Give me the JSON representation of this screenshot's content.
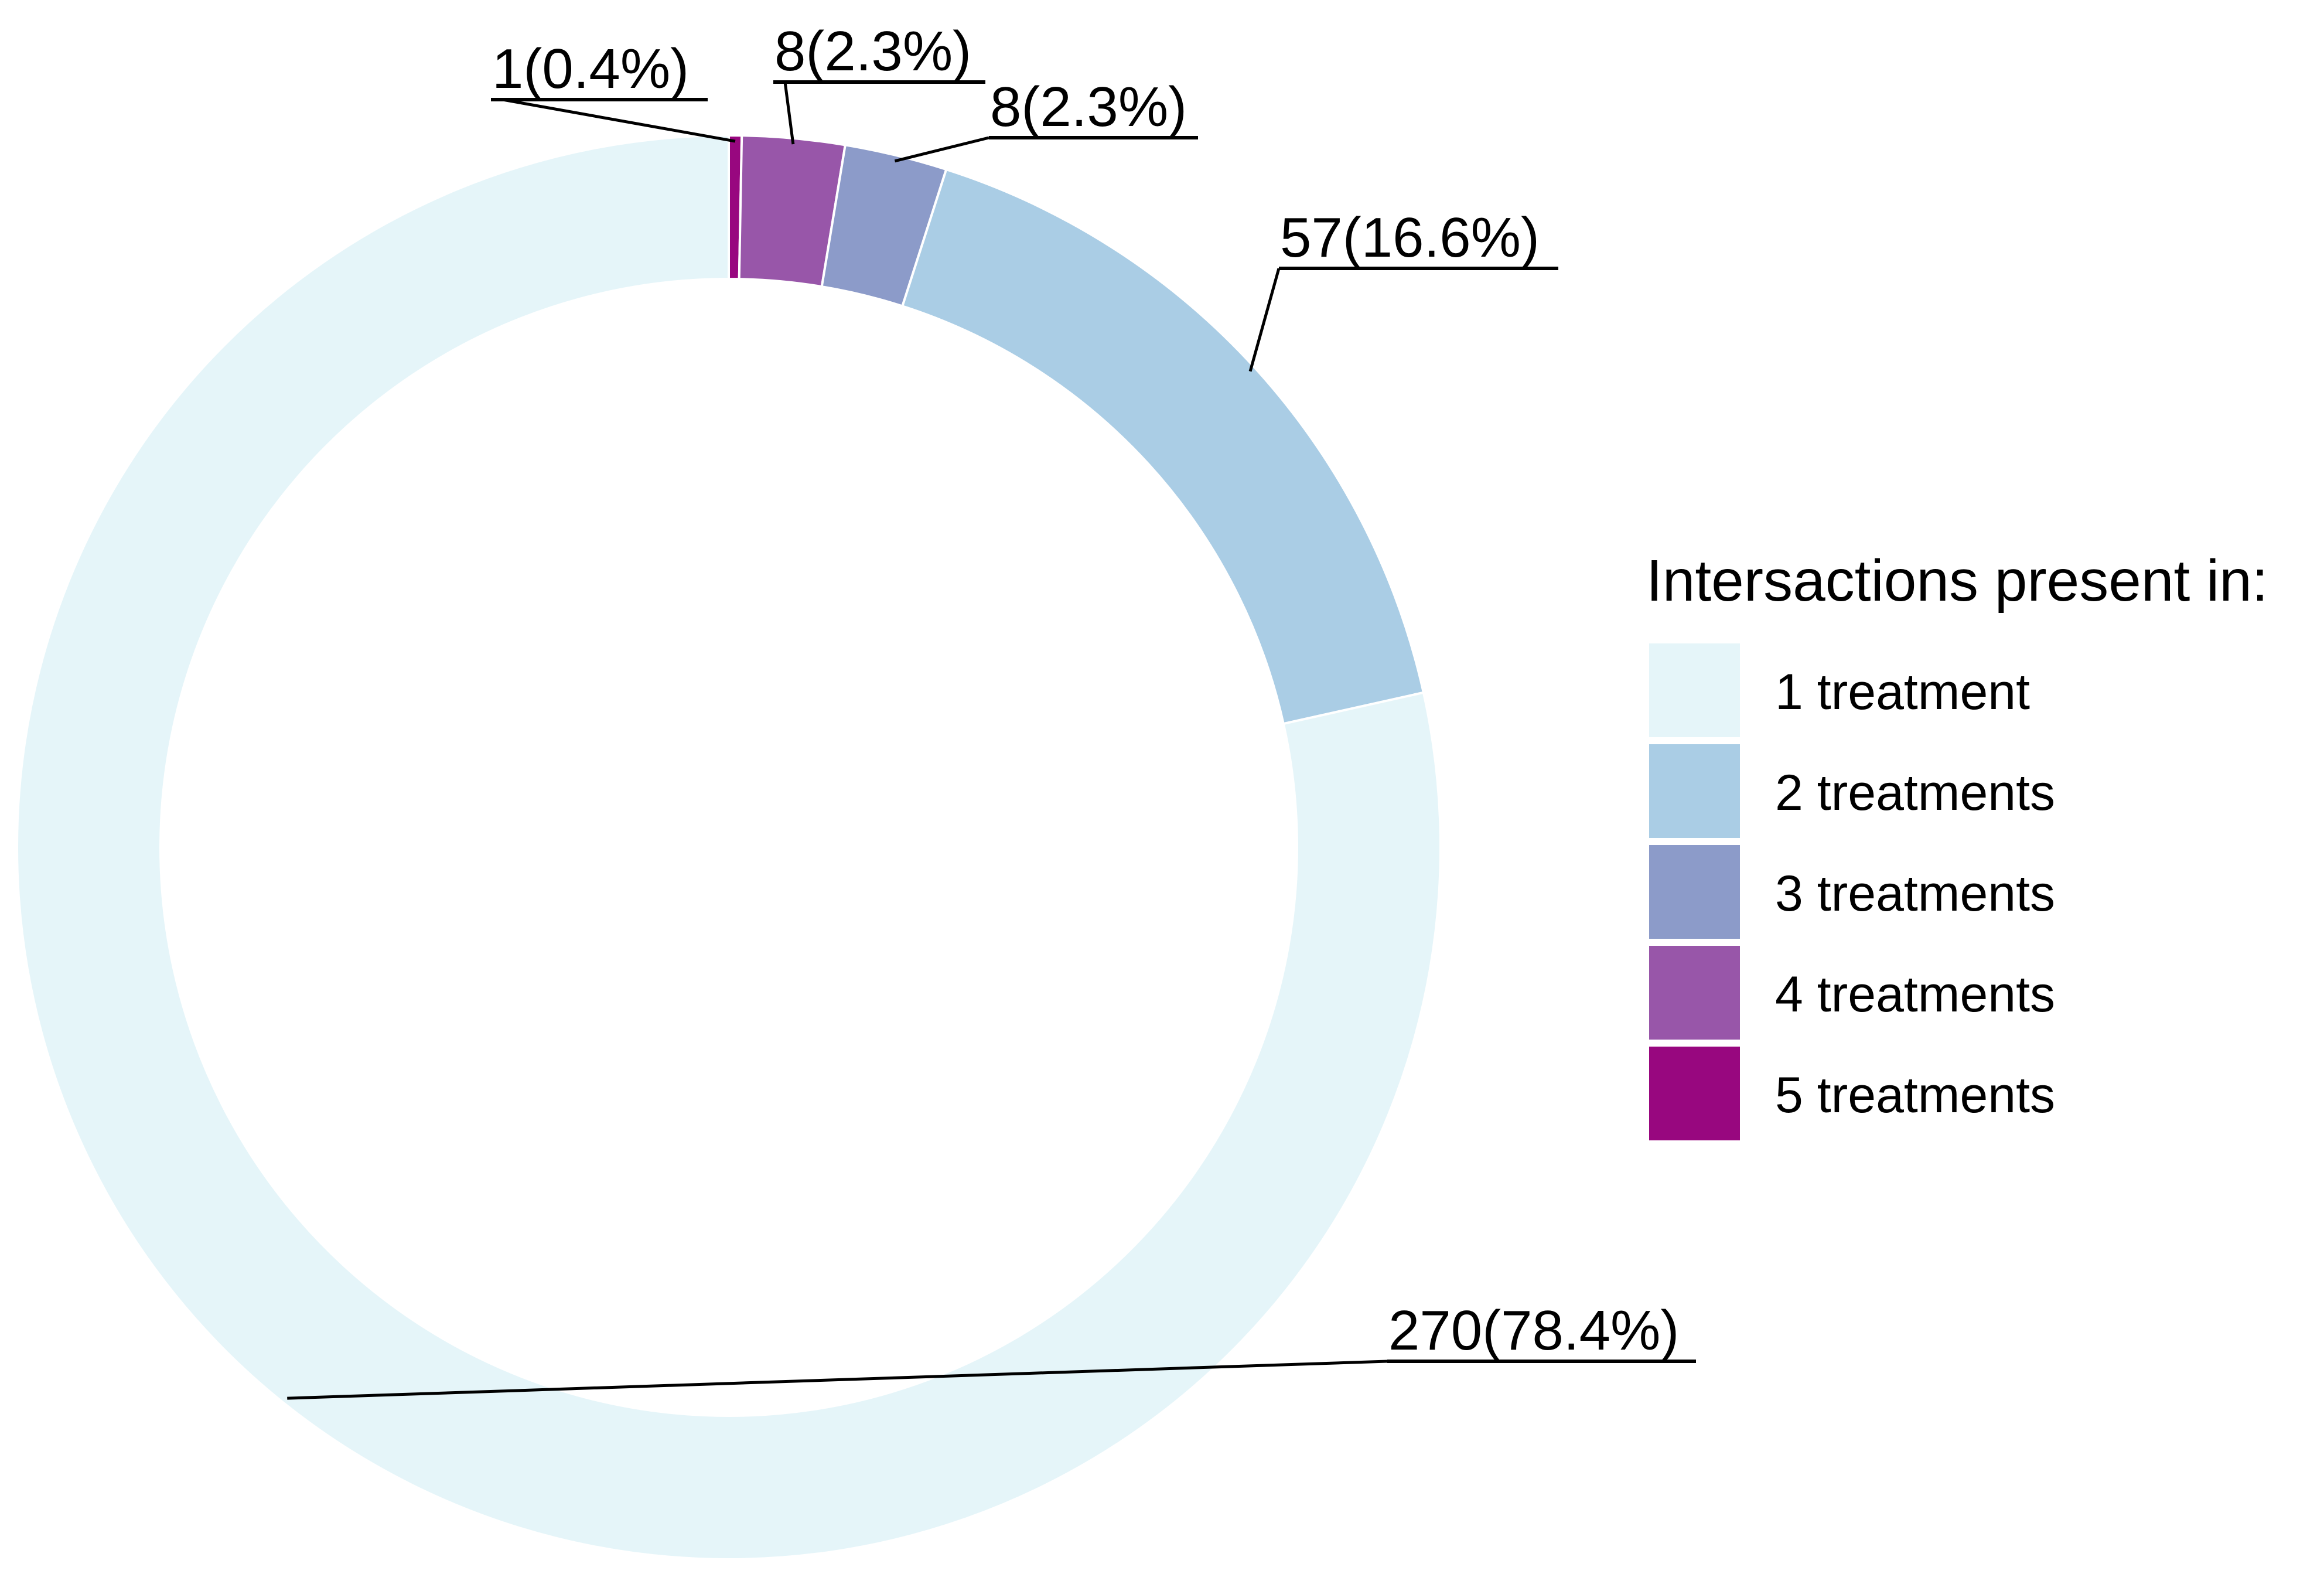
{
  "chart_data": {
    "type": "pie",
    "style": "donut",
    "title": "",
    "legend_title": "Intersactions present in:",
    "legend_position": "right",
    "slices": [
      {
        "name": "5 treatments",
        "value": 1,
        "percent": 0.4,
        "label": "1(0.4%)",
        "color": "#98077F"
      },
      {
        "name": "4 treatments",
        "value": 8,
        "percent": 2.3,
        "label": "8(2.3%)",
        "color": "#9856A9"
      },
      {
        "name": "3 treatments",
        "value": 8,
        "percent": 2.3,
        "label": "8(2.3%)",
        "color": "#8C9BC9"
      },
      {
        "name": "2 treatments",
        "value": 57,
        "percent": 16.6,
        "label": "57(16.6%)",
        "color": "#AACDE5"
      },
      {
        "name": "1 treatment",
        "value": 270,
        "percent": 78.4,
        "label": "270(78.4%)",
        "color": "#E5F5F9"
      }
    ],
    "legend": [
      {
        "name": "1 treatment",
        "color": "#E5F5F9"
      },
      {
        "name": "2 treatments",
        "color": "#AACDE5"
      },
      {
        "name": "3 treatments",
        "color": "#8C9BC9"
      },
      {
        "name": "4 treatments",
        "color": "#9856A9"
      },
      {
        "name": "5 treatments",
        "color": "#98077F"
      }
    ]
  }
}
